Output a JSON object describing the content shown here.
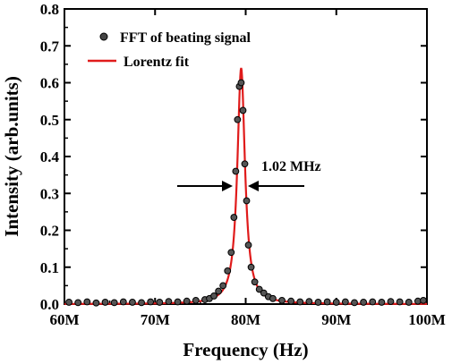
{
  "chart_data": {
    "type": "scatter",
    "title": "",
    "xlabel": "Frequency (Hz)",
    "ylabel": "Intensity (arb.units)",
    "xlim": [
      60,
      100
    ],
    "ylim": [
      0.0,
      0.8
    ],
    "x_unit": "MHz",
    "x_ticks": [
      60,
      70,
      80,
      90,
      100
    ],
    "x_tick_labels": [
      "60M",
      "70M",
      "80M",
      "90M",
      "100M"
    ],
    "y_ticks": [
      0.0,
      0.1,
      0.2,
      0.3,
      0.4,
      0.5,
      0.6,
      0.7,
      0.8
    ],
    "y_tick_labels": [
      "0.0",
      "0.1",
      "0.2",
      "0.3",
      "0.4",
      "0.5",
      "0.6",
      "0.7",
      "0.8"
    ],
    "grid": false,
    "legend_position": "top-left",
    "series": [
      {
        "name": "FFT of beating signal",
        "kind": "scatter",
        "color": "#000000",
        "x": [
          60.5,
          61.5,
          62.5,
          63.5,
          64.5,
          65.5,
          66.5,
          67.5,
          68.5,
          69.5,
          70.5,
          71.5,
          72.5,
          73.5,
          74.5,
          75.5,
          76.0,
          76.5,
          77.0,
          77.5,
          78.0,
          78.4,
          78.7,
          78.9,
          79.1,
          79.3,
          79.5,
          79.7,
          79.9,
          80.1,
          80.3,
          80.6,
          81.0,
          81.5,
          82.0,
          82.5,
          83.0,
          84.0,
          85.0,
          86.0,
          87.0,
          88.0,
          89.0,
          90.0,
          91.0,
          92.0,
          93.0,
          94.0,
          95.0,
          96.0,
          97.0,
          98.0,
          99.0,
          99.6
        ],
        "y": [
          0.005,
          0.004,
          0.006,
          0.003,
          0.005,
          0.004,
          0.006,
          0.005,
          0.004,
          0.006,
          0.005,
          0.007,
          0.006,
          0.008,
          0.01,
          0.012,
          0.015,
          0.022,
          0.035,
          0.05,
          0.09,
          0.14,
          0.235,
          0.36,
          0.5,
          0.59,
          0.6,
          0.525,
          0.38,
          0.28,
          0.16,
          0.1,
          0.06,
          0.04,
          0.03,
          0.02,
          0.015,
          0.01,
          0.008,
          0.006,
          0.007,
          0.005,
          0.006,
          0.005,
          0.006,
          0.004,
          0.005,
          0.006,
          0.005,
          0.007,
          0.006,
          0.005,
          0.008,
          0.01
        ]
      },
      {
        "name": "Lorentz fit",
        "kind": "line",
        "color": "#e01b1b",
        "center": 79.5,
        "fwhm": 1.02,
        "amplitude": 0.64,
        "baseline": 0.0
      }
    ],
    "annotations": [
      {
        "text": "1.02 MHz"
      }
    ]
  }
}
